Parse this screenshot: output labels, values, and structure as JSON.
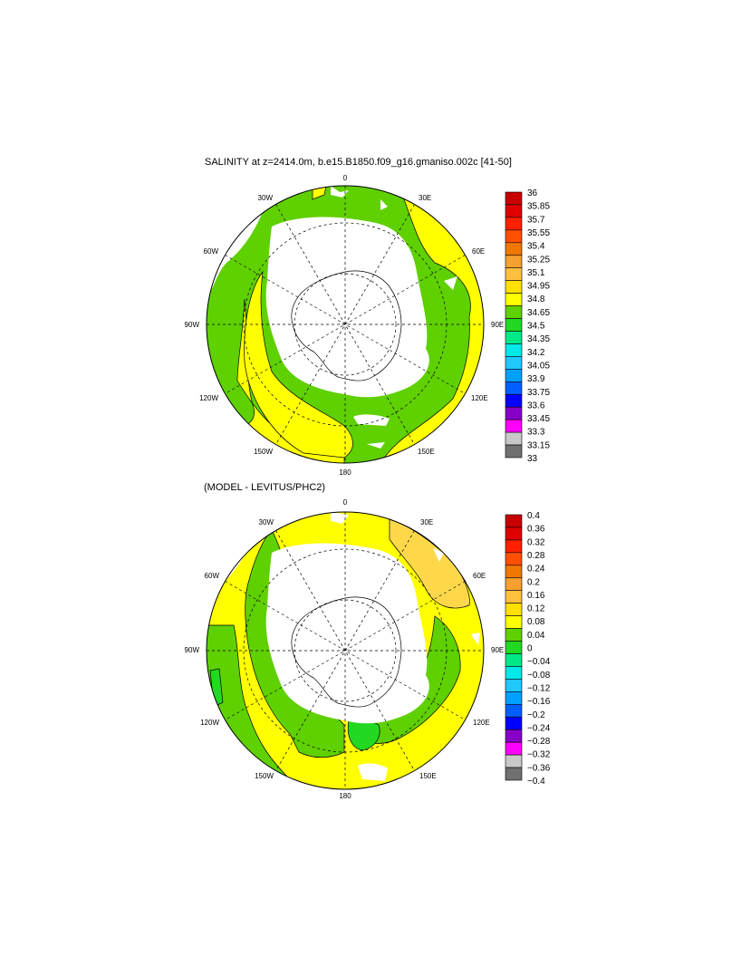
{
  "panel1": {
    "title": "SALINITY at z=2414.0m, b.e15.B1850.f09_g16.gmaniso.002c [41-50]",
    "lon_labels": {
      "n": "0",
      "ne": "30E",
      "e1": "60E",
      "e": "90E",
      "se1": "120E",
      "se": "150E",
      "s": "180",
      "sw": "150W",
      "w1": "120W",
      "w": "90W",
      "nw1": "60W",
      "nw": "30W"
    },
    "colorbar": {
      "labels": [
        "36",
        "35.85",
        "35.7",
        "35.55",
        "35.4",
        "35.25",
        "35.1",
        "34.95",
        "34.8",
        "34.65",
        "34.5",
        "34.35",
        "34.2",
        "34.05",
        "33.9",
        "33.75",
        "33.6",
        "33.45",
        "33.3",
        "33.15",
        "33"
      ],
      "colors": [
        "#c80000",
        "#e00000",
        "#ff2000",
        "#ff5000",
        "#f07800",
        "#f5a030",
        "#ffc040",
        "#ffe000",
        "#ffff00",
        "#5fd000",
        "#22d822",
        "#00e888",
        "#00e8e8",
        "#20c8ff",
        "#00a0ff",
        "#0060ff",
        "#0000ff",
        "#8800c8",
        "#ff00ff",
        "#c8c8c8",
        "#707070"
      ]
    }
  },
  "panel2": {
    "title": "(MODEL - LEVITUS/PHC2)",
    "lon_labels": {
      "n": "0",
      "ne": "30E",
      "e1": "60E",
      "e": "90E",
      "se1": "120E",
      "se": "150E",
      "s": "180",
      "sw": "150W",
      "w1": "120W",
      "w": "90W",
      "nw1": "60W",
      "nw": "30W"
    },
    "colorbar": {
      "labels": [
        "0.4",
        "0.36",
        "0.32",
        "0.28",
        "0.24",
        "0.2",
        "0.16",
        "0.12",
        "0.08",
        "0.04",
        "0",
        "−0.04",
        "−0.08",
        "−0.12",
        "−0.16",
        "−0.2",
        "−0.24",
        "−0.28",
        "−0.32",
        "−0.36",
        "−0.4"
      ],
      "colors": [
        "#c80000",
        "#e00000",
        "#ff2000",
        "#ff5000",
        "#f07800",
        "#f5a030",
        "#ffc040",
        "#ffe000",
        "#ffff00",
        "#5fd000",
        "#22d822",
        "#00e888",
        "#00e8e8",
        "#20c8ff",
        "#00a0ff",
        "#0060ff",
        "#0000ff",
        "#8800c8",
        "#ff00ff",
        "#c8c8c8",
        "#707070"
      ]
    }
  }
}
